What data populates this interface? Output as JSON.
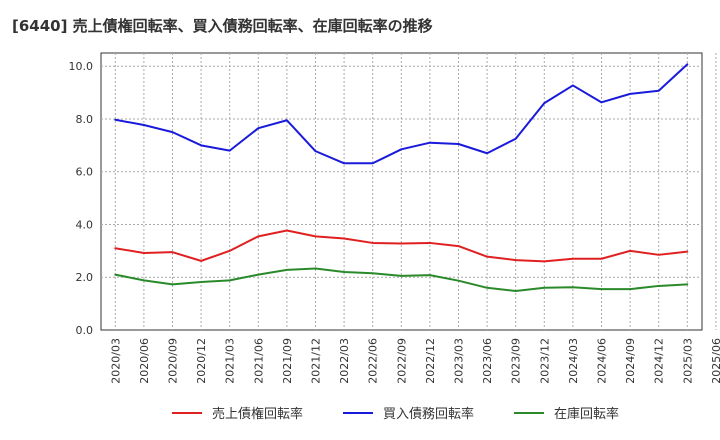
{
  "chart_data": {
    "type": "line",
    "title": "[6440]  売上債権回転率、買入債務回転率、在庫回転率の推移",
    "xlabel": "",
    "ylabel": "",
    "ylim": [
      0,
      10.5
    ],
    "yticks": [
      "0.0",
      "2.0",
      "4.0",
      "6.0",
      "8.0",
      "10.0"
    ],
    "ytick_values": [
      0,
      2,
      4,
      6,
      8,
      10
    ],
    "grid": true,
    "legend_position": "bottom",
    "x": [
      "2020/03",
      "2020/06",
      "2020/09",
      "2020/12",
      "2021/03",
      "2021/06",
      "2021/09",
      "2021/12",
      "2022/03",
      "2022/06",
      "2022/09",
      "2022/12",
      "2023/03",
      "2023/06",
      "2023/09",
      "2023/12",
      "2024/03",
      "2024/06",
      "2024/09",
      "2024/12",
      "2025/03",
      "2025/06"
    ],
    "series": [
      {
        "name": "売上債権回転率",
        "color": "#e02020",
        "values": [
          3.1,
          2.92,
          2.95,
          2.62,
          3.0,
          3.55,
          3.77,
          3.55,
          3.47,
          3.3,
          3.28,
          3.3,
          3.18,
          2.78,
          2.65,
          2.6,
          2.7,
          2.7,
          3.0,
          2.85,
          2.97,
          null
        ]
      },
      {
        "name": "買入債務回転率",
        "color": "#1a1adb",
        "values": [
          7.97,
          7.77,
          7.5,
          7.0,
          6.8,
          7.65,
          7.95,
          6.78,
          6.32,
          6.32,
          6.85,
          7.1,
          7.05,
          6.7,
          7.25,
          8.6,
          9.27,
          8.63,
          8.95,
          9.07,
          10.07,
          null
        ]
      },
      {
        "name": "在庫回転率",
        "color": "#2a8a2a",
        "values": [
          2.1,
          1.88,
          1.73,
          1.82,
          1.88,
          2.1,
          2.28,
          2.33,
          2.2,
          2.15,
          2.05,
          2.08,
          1.87,
          1.6,
          1.48,
          1.6,
          1.62,
          1.55,
          1.55,
          1.67,
          1.73,
          null
        ]
      }
    ]
  }
}
